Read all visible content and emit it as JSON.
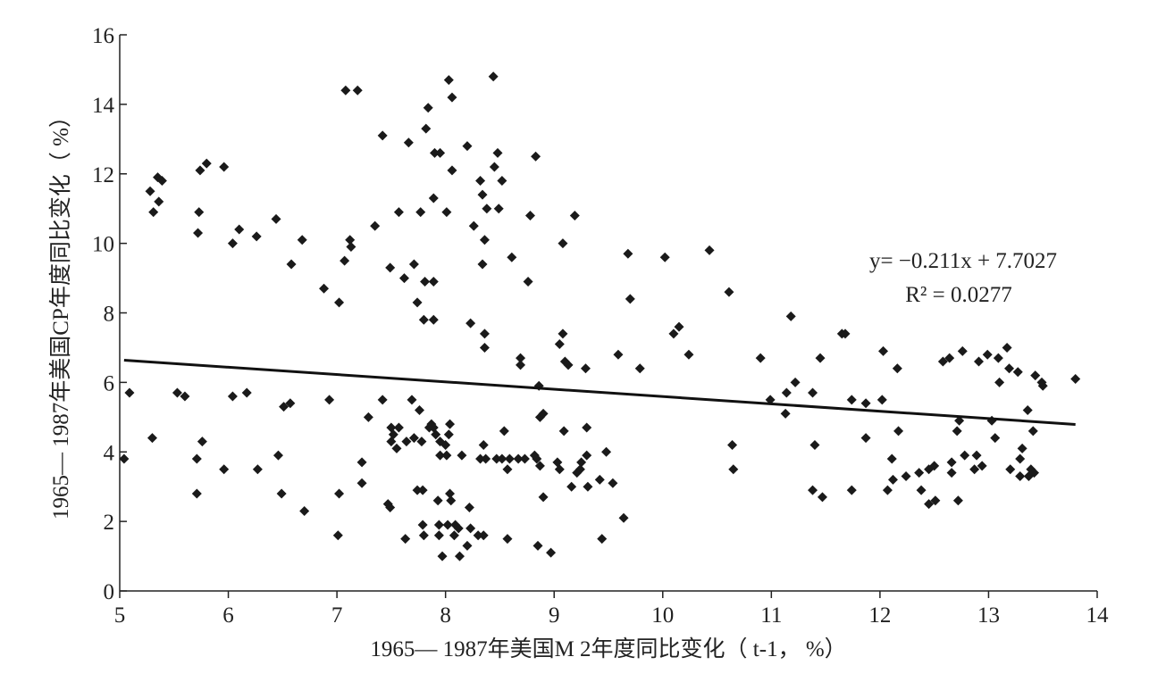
{
  "chart_data": {
    "type": "scatter",
    "x_label": "1965— 1987年美国M 2年度同比变化（ t-1， %）",
    "y_label": "1965— 1987年美国CP年度同比变化（ %）",
    "xlim": [
      5,
      14
    ],
    "xticks": [
      5,
      6,
      7,
      8,
      9,
      10,
      11,
      12,
      13,
      14
    ],
    "ylim": [
      0,
      16
    ],
    "yticks": [
      0,
      2,
      4,
      6,
      8,
      10,
      12,
      14,
      16
    ],
    "color": "#1a1a1a",
    "grid": false,
    "x": [
      5.04,
      5.09,
      5.3,
      5.28,
      5.31,
      5.35,
      5.39,
      5.36,
      5.53,
      5.6,
      5.71,
      5.76,
      5.71,
      5.72,
      5.73,
      5.74,
      5.8,
      5.96,
      5.96,
      6.04,
      6.04,
      6.1,
      6.17,
      6.26,
      6.27,
      6.44,
      6.46,
      6.49,
      6.51,
      6.57,
      6.58,
      6.68,
      6.7,
      6.88,
      6.93,
      7.01,
      7.02,
      7.02,
      7.07,
      7.08,
      7.12,
      7.13,
      7.19,
      7.23,
      7.23,
      7.29,
      7.35,
      7.42,
      7.42,
      7.47,
      7.49,
      7.49,
      7.5,
      7.5,
      7.52,
      7.55,
      7.57,
      7.57,
      7.62,
      7.63,
      7.64,
      7.69,
      7.66,
      7.71,
      7.71,
      7.74,
      7.74,
      7.76,
      7.78,
      7.77,
      7.79,
      7.79,
      7.8,
      7.8,
      7.81,
      7.82,
      7.84,
      7.85,
      7.87,
      7.89,
      7.89,
      7.89,
      7.9,
      7.89,
      7.91,
      7.93,
      7.94,
      7.94,
      7.95,
      7.95,
      7.95,
      7.97,
      8.0,
      8.01,
      8.01,
      8.02,
      8.03,
      8.03,
      8.04,
      8.04,
      8.05,
      8.06,
      8.06,
      8.08,
      8.09,
      8.12,
      8.13,
      8.15,
      8.2,
      8.2,
      8.22,
      8.23,
      8.23,
      8.26,
      8.3,
      8.32,
      8.32,
      8.34,
      8.34,
      8.35,
      8.35,
      8.36,
      8.36,
      8.36,
      8.37,
      8.38,
      8.45,
      8.44,
      8.47,
      8.48,
      8.49,
      8.52,
      8.52,
      8.54,
      8.57,
      8.57,
      8.59,
      8.61,
      8.67,
      8.69,
      8.69,
      8.73,
      8.76,
      8.78,
      8.82,
      8.83,
      8.84,
      8.85,
      8.86,
      8.87,
      8.87,
      8.9,
      8.9,
      8.97,
      9.03,
      9.05,
      9.05,
      9.08,
      9.08,
      9.09,
      9.1,
      9.13,
      9.16,
      9.19,
      9.21,
      9.24,
      9.25,
      9.29,
      9.3,
      9.31,
      9.3,
      9.42,
      9.44,
      9.48,
      9.54,
      9.59,
      9.64,
      9.68,
      9.7,
      9.79,
      10.02,
      10.1,
      10.15,
      10.24,
      10.43,
      10.61,
      10.64,
      10.65,
      10.9,
      10.99,
      11.13,
      11.14,
      11.18,
      11.22,
      11.38,
      11.38,
      11.4,
      11.45,
      11.47,
      11.65,
      11.68,
      11.74,
      11.74,
      11.87,
      11.87,
      12.02,
      12.03,
      12.07,
      12.11,
      12.12,
      12.16,
      12.17,
      12.24,
      12.36,
      12.38,
      12.45,
      12.45,
      12.5,
      12.51,
      12.58,
      12.64,
      12.66,
      12.66,
      12.71,
      12.73,
      12.72,
      12.76,
      12.78,
      12.87,
      12.91,
      12.89,
      12.94,
      12.99,
      13.03,
      13.06,
      13.09,
      13.1,
      13.17,
      13.19,
      13.2,
      13.27,
      13.29,
      13.29,
      13.31,
      13.36,
      13.37,
      13.39,
      13.42,
      13.41,
      13.43,
      13.49,
      13.5,
      13.8
    ],
    "values": [
      3.8,
      5.7,
      4.4,
      11.5,
      10.9,
      11.9,
      11.8,
      11.2,
      5.7,
      5.6,
      3.8,
      4.3,
      2.8,
      10.3,
      10.9,
      12.1,
      12.3,
      12.2,
      3.5,
      5.6,
      10.0,
      10.4,
      5.7,
      10.2,
      3.5,
      10.7,
      3.9,
      2.8,
      5.3,
      5.4,
      9.4,
      10.1,
      2.3,
      8.7,
      5.5,
      1.6,
      8.3,
      2.8,
      9.5,
      14.4,
      10.1,
      9.9,
      14.4,
      3.7,
      3.1,
      5.0,
      10.5,
      13.1,
      5.5,
      2.5,
      9.3,
      2.4,
      4.7,
      4.3,
      4.5,
      4.1,
      4.7,
      10.9,
      9.0,
      1.5,
      4.3,
      5.5,
      12.9,
      9.4,
      4.4,
      8.3,
      2.9,
      5.2,
      4.3,
      10.9,
      2.9,
      1.9,
      1.6,
      7.8,
      8.9,
      13.3,
      13.9,
      4.7,
      4.8,
      11.3,
      8.9,
      7.8,
      12.6,
      4.7,
      4.5,
      2.6,
      1.9,
      1.6,
      3.9,
      12.6,
      4.3,
      1.0,
      4.2,
      3.9,
      10.9,
      1.9,
      14.7,
      4.5,
      4.8,
      2.8,
      2.6,
      14.2,
      12.1,
      1.6,
      1.9,
      1.8,
      1.0,
      3.9,
      1.3,
      12.8,
      2.4,
      7.7,
      1.8,
      10.5,
      1.6,
      11.8,
      3.8,
      11.4,
      9.4,
      4.2,
      1.6,
      7.4,
      10.1,
      7.0,
      3.8,
      11.0,
      12.2,
      14.8,
      3.8,
      12.6,
      11.0,
      11.8,
      3.8,
      4.6,
      1.5,
      3.5,
      3.8,
      9.6,
      3.8,
      6.7,
      6.5,
      3.8,
      8.9,
      10.8,
      3.9,
      12.5,
      3.8,
      1.3,
      5.9,
      5.0,
      3.6,
      5.1,
      2.7,
      1.1,
      3.7,
      3.5,
      7.1,
      7.4,
      10.0,
      4.6,
      6.6,
      6.5,
      3.0,
      10.8,
      3.4,
      3.5,
      3.7,
      6.4,
      4.7,
      3.0,
      3.9,
      3.2,
      1.5,
      4.0,
      3.1,
      6.8,
      2.1,
      9.7,
      8.4,
      6.4,
      9.6,
      7.4,
      7.6,
      6.8,
      9.8,
      8.6,
      4.2,
      3.5,
      6.7,
      5.5,
      5.1,
      5.7,
      7.9,
      6.0,
      2.9,
      5.7,
      4.2,
      6.7,
      2.7,
      7.4,
      7.4,
      5.5,
      2.9,
      5.4,
      4.4,
      5.5,
      6.9,
      2.9,
      3.8,
      3.2,
      6.4,
      4.6,
      3.3,
      3.4,
      2.9,
      3.5,
      2.5,
      3.6,
      2.6,
      6.6,
      6.7,
      3.4,
      3.7,
      4.6,
      4.9,
      2.6,
      6.9,
      3.9,
      3.5,
      6.6,
      3.9,
      3.6,
      6.8,
      4.9,
      4.4,
      6.7,
      6.0,
      7.0,
      6.4,
      3.5,
      6.3,
      3.3,
      3.8,
      4.1,
      5.2,
      3.3,
      3.5,
      3.4,
      4.6,
      6.2,
      6.0,
      5.9,
      6.1
    ],
    "trendline": {
      "slope": -0.211,
      "intercept": 7.7027
    },
    "equation": "y= −0.211x + 7.7027",
    "r_squared_label": "R² = 0.0277"
  }
}
